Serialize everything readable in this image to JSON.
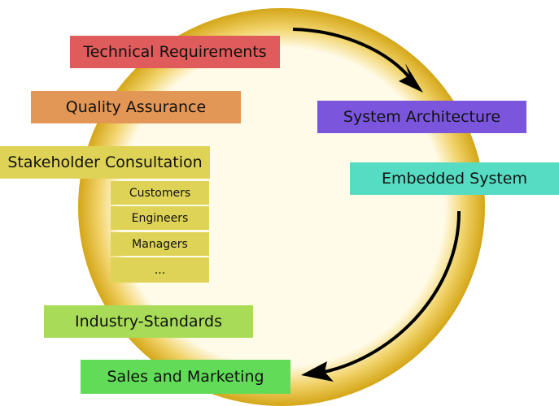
{
  "diagram": {
    "left_items": [
      {
        "label": "Technical Requirements",
        "color": "#e05b5b"
      },
      {
        "label": "Quality Assurance",
        "color": "#e39756"
      },
      {
        "label": "Stakeholder Consultation",
        "color": "#ded356"
      },
      {
        "label": "Industry-Standards",
        "color": "#a8dc58"
      },
      {
        "label": "Sales and Marketing",
        "color": "#62dc58"
      }
    ],
    "stakeholder_subitems": [
      {
        "label": "Customers"
      },
      {
        "label": "Engineers"
      },
      {
        "label": "Managers"
      },
      {
        "label": "..."
      }
    ],
    "right_items": [
      {
        "label": "System Architecture",
        "color": "#7b56dc"
      },
      {
        "label": "Embedded System",
        "color": "#57dcc4"
      }
    ],
    "ring": {
      "inner_color": "#fffbe8",
      "outer_color": "#d4a618",
      "arrow_color": "#000000"
    },
    "subitem_color": "#ded356"
  }
}
